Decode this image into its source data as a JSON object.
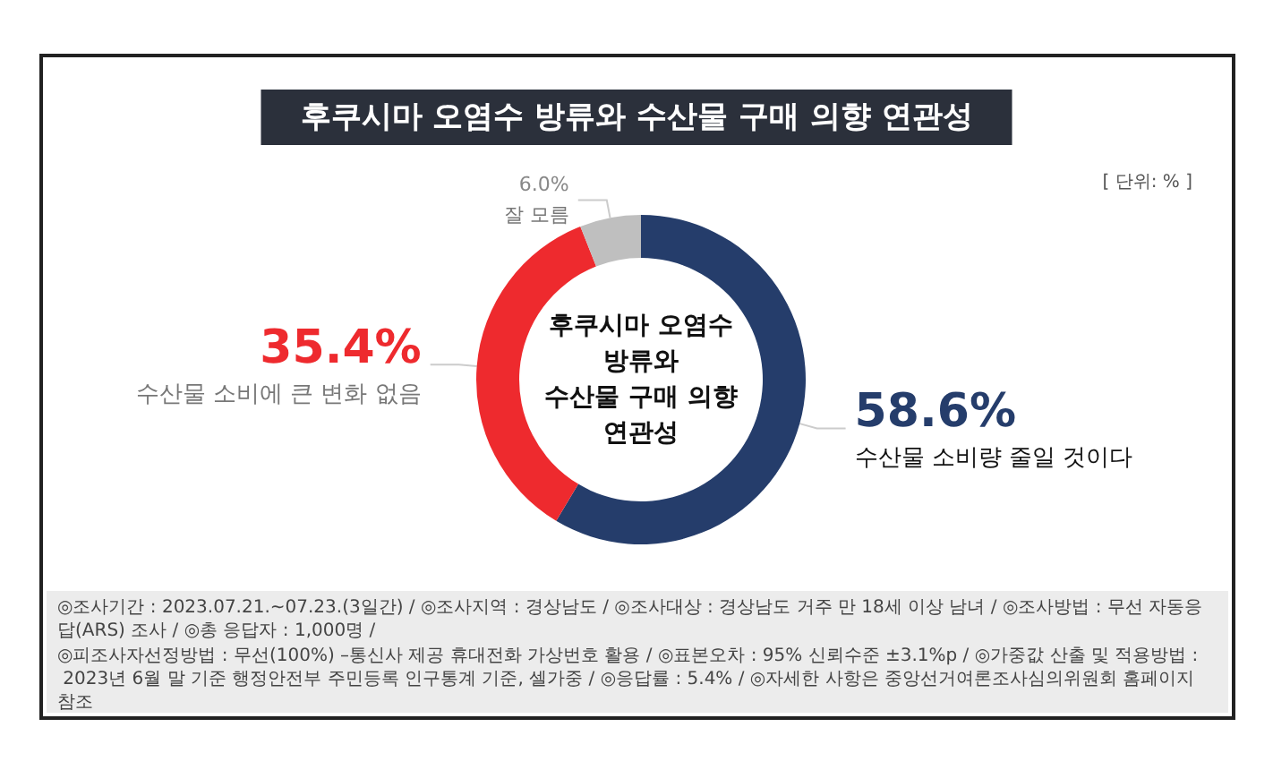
{
  "chart_data": {
    "type": "donut",
    "title": "후쿠시마 오염수 방류와 수산물 구매 의향 연관성",
    "subtitle": "[ 단위: % ]",
    "categories": [
      "수산물 소비량 줄일 것이다",
      "수산물 소비에 큰 변화 없음",
      "잘 모름"
    ],
    "values": [
      58.6,
      35.4,
      6.0
    ],
    "colors": [
      "#253d6b",
      "#ee2a2e",
      "#bfbfbf"
    ],
    "value_labels": [
      "58.6%",
      "35.4%",
      "6.0%"
    ],
    "annotations": [
      "후쿠시마 오염수\n방류와\n수산물 구매 의향\n연관성",
      "◎조사기간 : 2023.07.21.~07.23.(3일간) / ◎조사지역 : 경상남도 / ◎조사대상 : 경상남도 거주 만 18세 이상 남녀 / ◎조사방법 : 무선 자동응답(ARS) 조사 / ◎총 응답자 : 1,000명 /",
      "◎피조사자선정방법 : 무선(100%) –통신사 제공 휴대전화 가상번호 활용 / ◎표본오차 : 95% 신뢰수준 ±3.1%p / ◎가중값 산출 및 적용방법 : 2023년 6월 말 기준 행정안전부 주민등록 인구통계 기준, 셀가중 / ◎응답률 : 5.4% / ◎자세한 사항은 중앙선거여론조사심의위원회 홈페이지 참조"
    ]
  }
}
